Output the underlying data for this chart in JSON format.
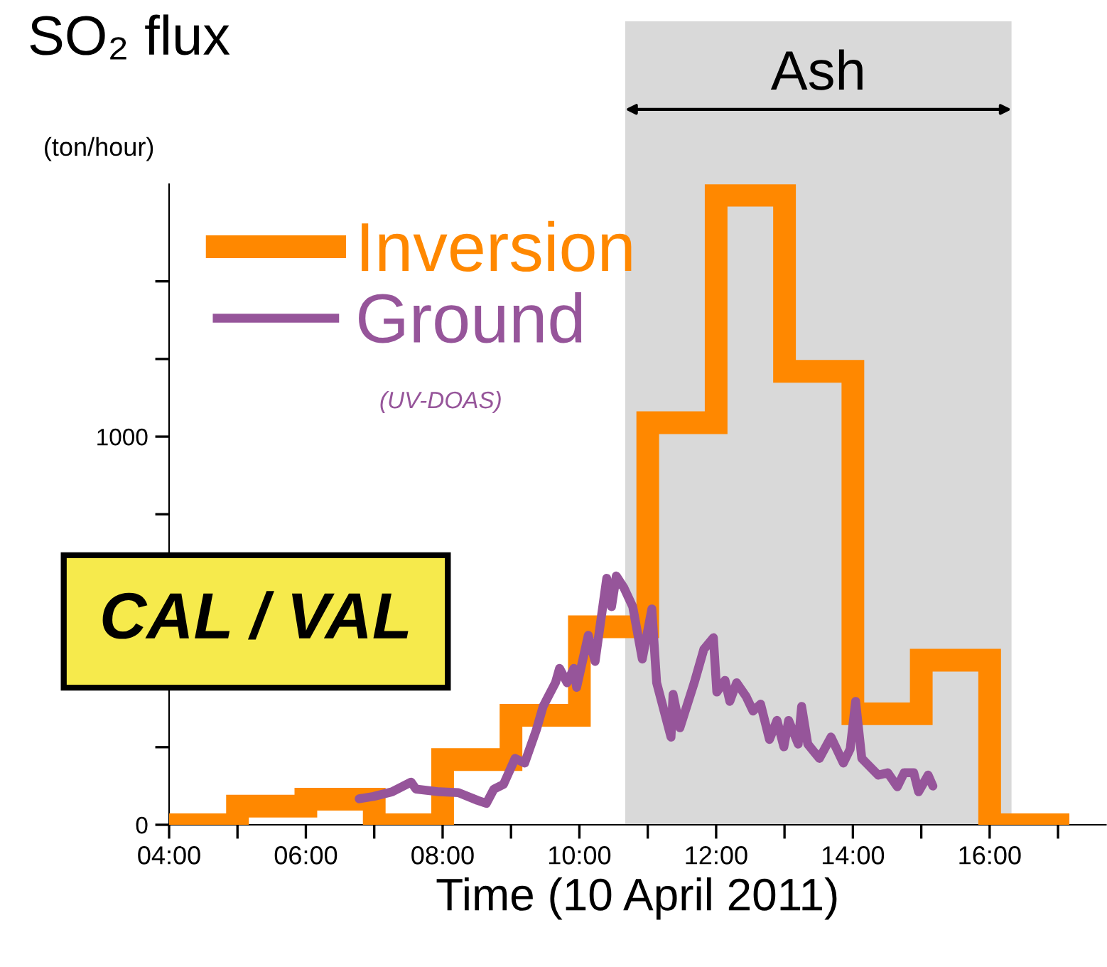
{
  "chart_data": {
    "type": "line",
    "title": "SO₂ flux",
    "ylabel": "(ton/hour)",
    "xlabel": "Time (10 April 2011)",
    "annotations": [
      "(UV-DOAS)",
      "CAL / VAL"
    ],
    "xlim": [
      4,
      17.7
    ],
    "ylim": [
      0,
      1650
    ],
    "xticks": [
      {
        "value": 4,
        "label": "04:00"
      },
      {
        "value": 5,
        "label": null
      },
      {
        "value": 6,
        "label": "06:00"
      },
      {
        "value": 7,
        "label": null
      },
      {
        "value": 8,
        "label": "08:00"
      },
      {
        "value": 9,
        "label": null
      },
      {
        "value": 10,
        "label": "10:00"
      },
      {
        "value": 11,
        "label": null
      },
      {
        "value": 12,
        "label": "12:00"
      },
      {
        "value": 13,
        "label": null
      },
      {
        "value": 14,
        "label": "14:00"
      },
      {
        "value": 15,
        "label": null
      },
      {
        "value": 16,
        "label": "16:00"
      },
      {
        "value": 17,
        "label": null
      }
    ],
    "yticks": [
      0,
      {
        "value": 200,
        "label": null
      },
      {
        "value": 400,
        "label": null
      },
      {
        "value": 600,
        "label": null
      },
      {
        "value": 800,
        "label": null
      },
      1000,
      {
        "value": 1200,
        "label": null
      },
      {
        "value": 1400,
        "label": null
      }
    ],
    "bands": [
      {
        "axis": "x",
        "from": 10.67,
        "to": 16.32,
        "label": "Ash",
        "color": "#d9d9d9"
      }
    ],
    "series": [
      {
        "name": "Inversion",
        "type": "step",
        "color": "#ff8800",
        "x": [
          4,
          5,
          6,
          7,
          8,
          9,
          10,
          11,
          12,
          13,
          14,
          15,
          16,
          17
        ],
        "values": [
          0,
          48,
          66,
          0,
          168,
          282,
          510,
          1036,
          1622,
          1168,
          286,
          424,
          0,
          0
        ]
      },
      {
        "name": "Ground",
        "color": "#96559a",
        "x": [
          6.78,
          6.99,
          7.26,
          7.54,
          7.61,
          7.95,
          8.23,
          8.51,
          8.64,
          8.75,
          8.89,
          9.06,
          9.2,
          9.37,
          9.47,
          9.65,
          9.71,
          9.82,
          9.92,
          9.96,
          10.13,
          10.23,
          10.4,
          10.47,
          10.54,
          10.65,
          10.78,
          10.92,
          11.06,
          11.13,
          11.34,
          11.37,
          11.47,
          11.68,
          11.82,
          11.96,
          12.01,
          12.13,
          12.2,
          12.3,
          12.44,
          12.54,
          12.65,
          12.78,
          12.89,
          12.99,
          13.06,
          13.2,
          13.25,
          13.34,
          13.51,
          13.68,
          13.86,
          13.96,
          14.04,
          14.13,
          14.37,
          14.51,
          14.65,
          14.75,
          14.89,
          14.96,
          15.1,
          15.17
        ],
        "values": [
          67,
          73,
          85,
          110,
          92,
          85,
          83,
          63,
          55,
          92,
          104,
          171,
          159,
          244,
          305,
          366,
          403,
          366,
          403,
          354,
          488,
          421,
          635,
          562,
          641,
          611,
          562,
          427,
          556,
          366,
          226,
          336,
          250,
          366,
          452,
          482,
          342,
          372,
          318,
          366,
          330,
          293,
          311,
          220,
          269,
          201,
          269,
          208,
          305,
          208,
          171,
          226,
          159,
          195,
          318,
          171,
          128,
          134,
          98,
          134,
          134,
          85,
          128,
          100
        ]
      }
    ],
    "legend": "top left",
    "grid": false
  }
}
